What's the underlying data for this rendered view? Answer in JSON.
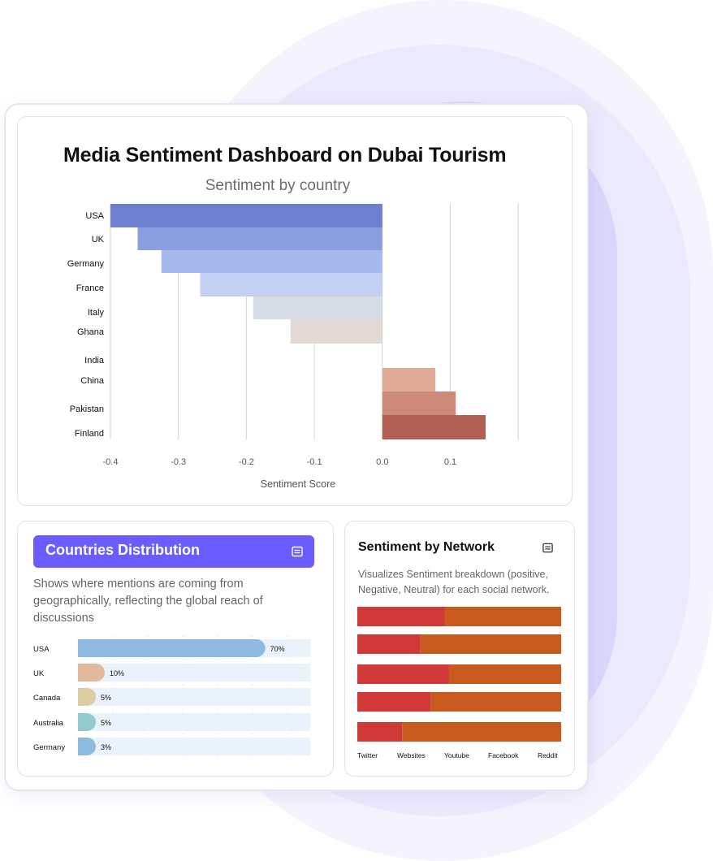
{
  "dashboard": {
    "title": "Media Sentiment Dashboard on Dubai Tourism"
  },
  "chart_data": [
    {
      "type": "bar",
      "orientation": "horizontal",
      "title": "Sentiment by country",
      "xlabel": "Sentiment Score",
      "ylabel": "",
      "categories": [
        "USA",
        "UK",
        "Germany",
        "France",
        "Italy",
        "Ghana",
        "India",
        "China",
        "Pakistan",
        "Finland"
      ],
      "values": [
        -0.4,
        -0.36,
        -0.325,
        -0.268,
        -0.19,
        -0.135,
        0.0,
        0.078,
        0.108,
        0.152
      ],
      "xlim": [
        -0.4,
        0.2
      ],
      "xticks": [
        "-0.4",
        "-0.3",
        "-0.2",
        "-0.1",
        "0.0",
        "0.1"
      ],
      "grid": "vertical",
      "colors": [
        "#6d7fcf",
        "#8a9fe0",
        "#a6b9ec",
        "#c3d0f2",
        "#d6dde6",
        "#e3d9d4",
        "#ead1c6",
        "#dfab94",
        "#cd8a78",
        "#b25f54"
      ]
    },
    {
      "type": "bar",
      "orientation": "horizontal",
      "title": "Countries Distribution",
      "categories": [
        "USA",
        "UK",
        "Canada",
        "Australia",
        "Germany"
      ],
      "values": [
        70,
        10,
        5,
        5,
        3
      ],
      "labels": [
        "70%",
        "10%",
        "5%",
        "5%",
        "3%"
      ],
      "colors": [
        "#8ebadf",
        "#e3b99c",
        "#dccda2",
        "#95cacb",
        "#8ebadf"
      ]
    },
    {
      "type": "bar",
      "orientation": "horizontal",
      "stacked": true,
      "title": "Sentiment by Network",
      "categories": [
        "Twitter",
        "Websites",
        "Youtube",
        "Facebook",
        "Reddit"
      ],
      "series": [
        {
          "values": [
            43,
            31,
            45,
            36,
            22
          ],
          "color": "#d13838"
        },
        {
          "values": [
            57,
            69,
            55,
            64,
            78
          ],
          "color": "#c95a1d"
        }
      ]
    }
  ],
  "countries_distribution": {
    "title": "Countries Distribution",
    "description": "Shows where mentions are coming from geographically, reflecting the global reach of discussions",
    "icon": "document-icon",
    "header_color": "#6a5cff"
  },
  "sentiment_network": {
    "title": "Sentiment by Network",
    "description": "Visualizes Sentiment breakdown (positive, Negative, Neutral) for each social network.",
    "icon": "document-icon"
  }
}
